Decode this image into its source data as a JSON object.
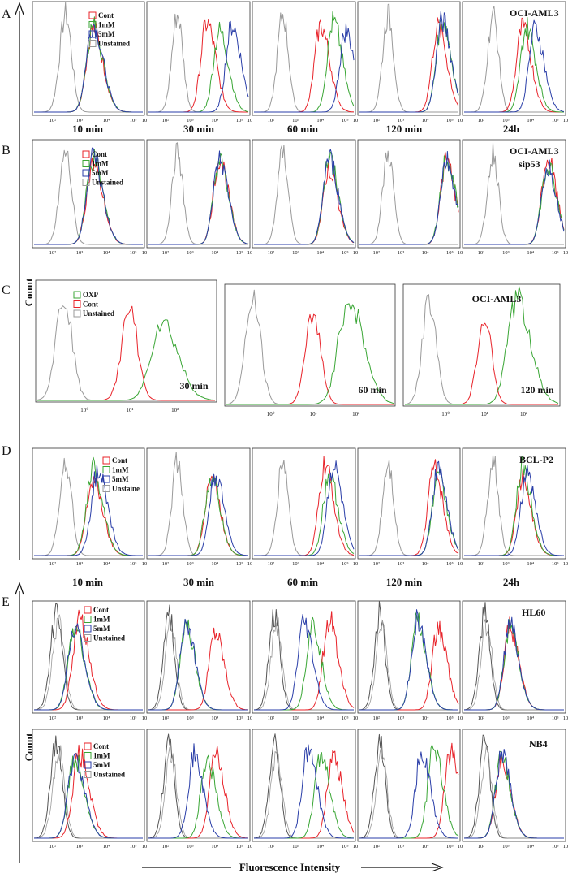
{
  "panel_letters": [
    "A",
    "B",
    "C",
    "D",
    "E"
  ],
  "axis_labels": {
    "y": "Count",
    "x": "Fluorescence Intensity"
  },
  "time_labels": [
    "10 min",
    "30 min",
    "60 min",
    "120 min",
    "24h"
  ],
  "panel_c_times": [
    "30 min",
    "60 min",
    "120 min"
  ],
  "cell_lines": {
    "A": "OCI-AML3",
    "B_line1": "OCI-AML3",
    "B_line2": "sip53",
    "C": "OCI-AML3",
    "D": "BCL-P2",
    "E_top": "HL60",
    "E_bottom": "NB4"
  },
  "legend_abd": [
    "Cont",
    "1mM",
    "5mM",
    "Unstained"
  ],
  "legend_d": [
    "Cont",
    "1mM",
    "5mM",
    "Unstaine"
  ],
  "legend_c": [
    "OXP",
    "Cont",
    "Unstained"
  ],
  "colors": {
    "cont": "#e8232a",
    "1mM": "#3aa635",
    "5mM": "#2a3ea8",
    "unstained": "#9a9a9a",
    "oxp": "#3aa635",
    "unstained_dark": "#555555"
  },
  "tick_labels": [
    "10²",
    "10³",
    "10⁴",
    "10⁵",
    "10"
  ],
  "panel_c_ticks": [
    "10⁰",
    "10¹",
    "10²"
  ],
  "chart_data": [
    {
      "type": "area",
      "panel": "A",
      "title": "OCI-AML3",
      "xlabel": "Fluorescence Intensity",
      "ylabel": "Count",
      "x_scale": "log",
      "categories": [
        "10 min",
        "30 min",
        "60 min",
        "120 min",
        "24h"
      ],
      "series": [
        {
          "name": "Unstained",
          "peak_log": [
            2.8,
            2.8,
            2.8,
            2.8,
            2.8
          ]
        },
        {
          "name": "Cont",
          "peak_log": [
            3.4,
            3.5,
            3.7,
            4.0,
            3.5
          ]
        },
        {
          "name": "1mM",
          "peak_log": [
            3.4,
            3.8,
            4.0,
            4.1,
            3.6
          ]
        },
        {
          "name": "5mM",
          "peak_log": [
            3.4,
            4.1,
            4.3,
            4.1,
            3.8
          ]
        }
      ]
    },
    {
      "type": "area",
      "panel": "B",
      "title": "OCI-AML3 sip53",
      "x_scale": "log",
      "categories": [
        "10 min",
        "30 min",
        "60 min",
        "120 min",
        "24h"
      ],
      "series": [
        {
          "name": "Unstained",
          "peak_log": [
            2.8,
            2.8,
            2.8,
            2.8,
            2.8
          ]
        },
        {
          "name": "Cont",
          "peak_log": [
            3.4,
            3.8,
            3.9,
            4.2,
            4.1
          ]
        },
        {
          "name": "1mM",
          "peak_log": [
            3.4,
            3.8,
            3.9,
            4.2,
            4.1
          ]
        },
        {
          "name": "5mM",
          "peak_log": [
            3.4,
            3.8,
            3.9,
            4.2,
            4.1
          ]
        }
      ]
    },
    {
      "type": "area",
      "panel": "C",
      "title": "OCI-AML3",
      "x_scale": "log",
      "categories": [
        "30 min",
        "60 min",
        "120 min"
      ],
      "series": [
        {
          "name": "Unstained",
          "peak_log": [
            -0.5,
            -0.5,
            -0.5
          ]
        },
        {
          "name": "Cont",
          "peak_log": [
            1.1,
            1.2,
            1.2
          ]
        },
        {
          "name": "OXP",
          "peak_log": [
            1.6,
            1.7,
            1.6
          ]
        }
      ]
    },
    {
      "type": "area",
      "panel": "D",
      "title": "BCL-P2",
      "x_scale": "log",
      "categories": [
        "10 min",
        "30 min",
        "60 min",
        "120 min",
        "24h"
      ],
      "series": [
        {
          "name": "Unstained",
          "peak_log": [
            2.8,
            2.8,
            2.8,
            2.8,
            2.8
          ]
        },
        {
          "name": "Cont",
          "peak_log": [
            3.4,
            3.6,
            3.8,
            3.9,
            3.5
          ]
        },
        {
          "name": "1mM",
          "peak_log": [
            3.4,
            3.6,
            3.9,
            4.0,
            3.5
          ]
        },
        {
          "name": "5mM",
          "peak_log": [
            3.5,
            3.7,
            4.0,
            4.0,
            3.6
          ]
        }
      ]
    },
    {
      "type": "area",
      "panel": "E-HL60",
      "title": "HL60",
      "x_scale": "log",
      "categories": [
        "10 min",
        "30 min",
        "60 min",
        "120 min",
        "24h"
      ],
      "series": [
        {
          "name": "Unstained",
          "peak_log": [
            2.6,
            2.6,
            2.6,
            2.6,
            2.6
          ]
        },
        {
          "name": "Cont",
          "peak_log": [
            3.1,
            3.7,
            3.9,
            4.0,
            3.2
          ]
        },
        {
          "name": "1mM",
          "peak_log": [
            3.0,
            3.0,
            3.5,
            3.5,
            3.2
          ]
        },
        {
          "name": "5mM",
          "peak_log": [
            3.0,
            3.0,
            3.3,
            3.5,
            3.2
          ]
        }
      ]
    },
    {
      "type": "area",
      "panel": "E-NB4",
      "title": "NB4",
      "x_scale": "log",
      "categories": [
        "10 min",
        "30 min",
        "60 min",
        "120 min",
        "24h"
      ],
      "series": [
        {
          "name": "Unstained",
          "peak_log": [
            2.6,
            2.6,
            2.6,
            2.6,
            2.6
          ]
        },
        {
          "name": "Cont",
          "peak_log": [
            3.1,
            3.7,
            4.0,
            4.3,
            3.0
          ]
        },
        {
          "name": "1mM",
          "peak_log": [
            3.0,
            3.5,
            3.7,
            3.9,
            3.0
          ]
        },
        {
          "name": "5mM",
          "peak_log": [
            3.0,
            3.2,
            3.4,
            3.6,
            3.0
          ]
        }
      ]
    }
  ]
}
